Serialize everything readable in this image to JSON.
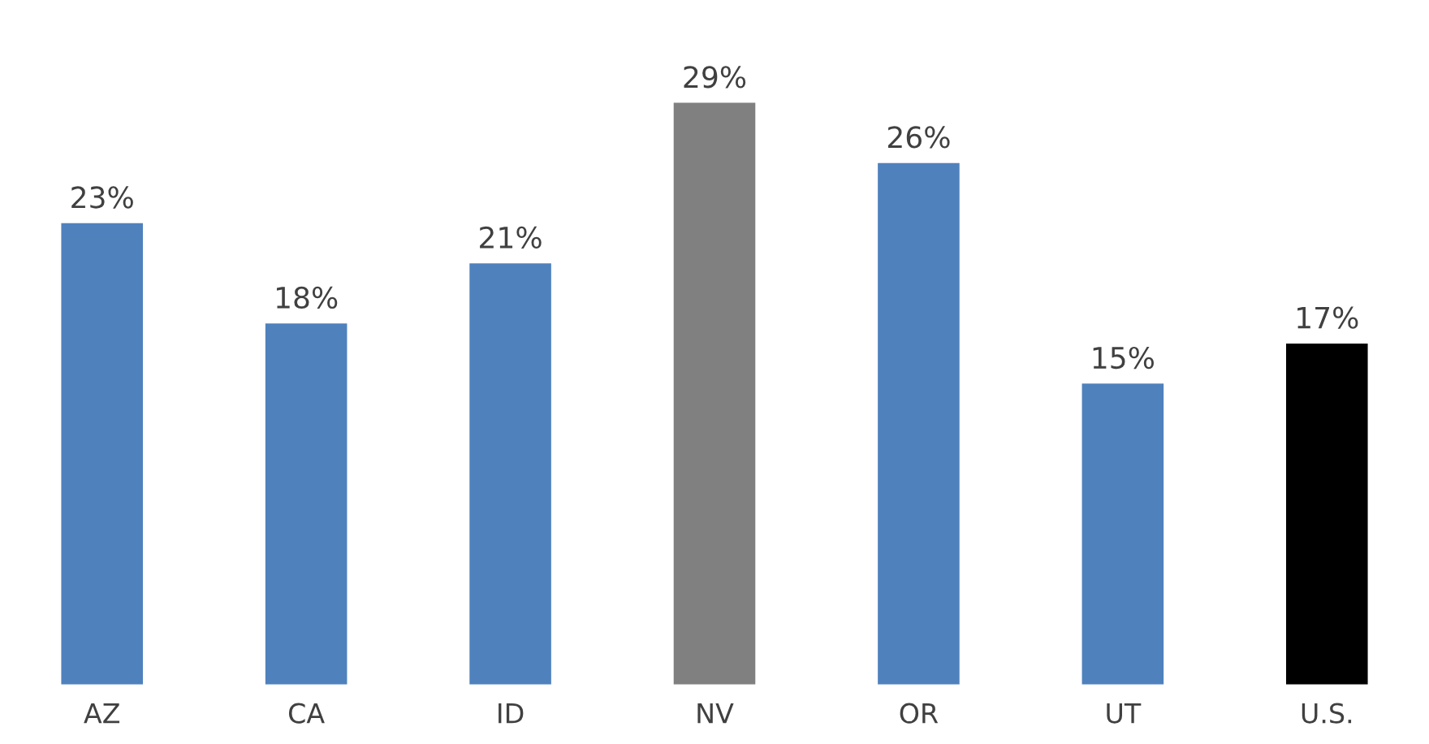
{
  "chart_data": {
    "type": "bar",
    "categories": [
      "AZ",
      "CA",
      "ID",
      "NV",
      "OR",
      "UT",
      "U.S."
    ],
    "values": [
      23,
      18,
      21,
      29,
      26,
      15,
      17
    ],
    "colors": [
      "#4f81bd",
      "#4f81bd",
      "#4f81bd",
      "#808080",
      "#4f81bd",
      "#4f81bd",
      "#000000"
    ],
    "value_labels": [
      "23%",
      "18%",
      "21%",
      "29%",
      "26%",
      "15%",
      "17%"
    ],
    "grid": false,
    "legend": false
  }
}
